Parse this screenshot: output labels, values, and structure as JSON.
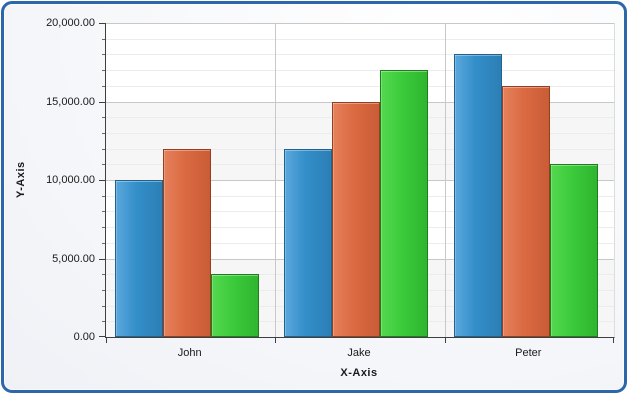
{
  "chart_data": {
    "type": "bar",
    "title": "",
    "xlabel": "X-Axis",
    "ylabel": "Y-Axis",
    "categories": [
      "John",
      "Jake",
      "Peter"
    ],
    "series": [
      {
        "name": "blue",
        "values": [
          10000,
          12000,
          18000
        ],
        "fill": "#338ec9",
        "fill_light": "#5aa8dc",
        "fill_dark": "#2c7fb5",
        "border": "#1f618f"
      },
      {
        "name": "orange",
        "values": [
          12000,
          15000,
          16000
        ],
        "fill": "#db6a42",
        "fill_light": "#e5815c",
        "fill_dark": "#c95c36",
        "border": "#93401f"
      },
      {
        "name": "green",
        "values": [
          4000,
          17000,
          11000
        ],
        "fill": "#3bcb3b",
        "fill_light": "#55d84f",
        "fill_dark": "#2fb52f",
        "border": "#1e7e1e"
      }
    ],
    "ylim": [
      0,
      20000
    ],
    "y_major_step": 5000,
    "y_minor_step": 1000,
    "y_tick_labels": [
      "20,000.00",
      "15,000.00",
      "10,000.00",
      "5,000.00",
      "0.00"
    ],
    "grid": "horizontal major+minor, alternating bands",
    "legend_position": "none"
  },
  "colors": {
    "panel_border": "#2d67aa",
    "plot_bg": "#ffffff",
    "band_gray": "#f6f6f6",
    "grid_major": "#c8c8c8",
    "grid_minor": "#ececec",
    "axis_line": "#3f3f3f",
    "text": "#1a1a1a"
  }
}
